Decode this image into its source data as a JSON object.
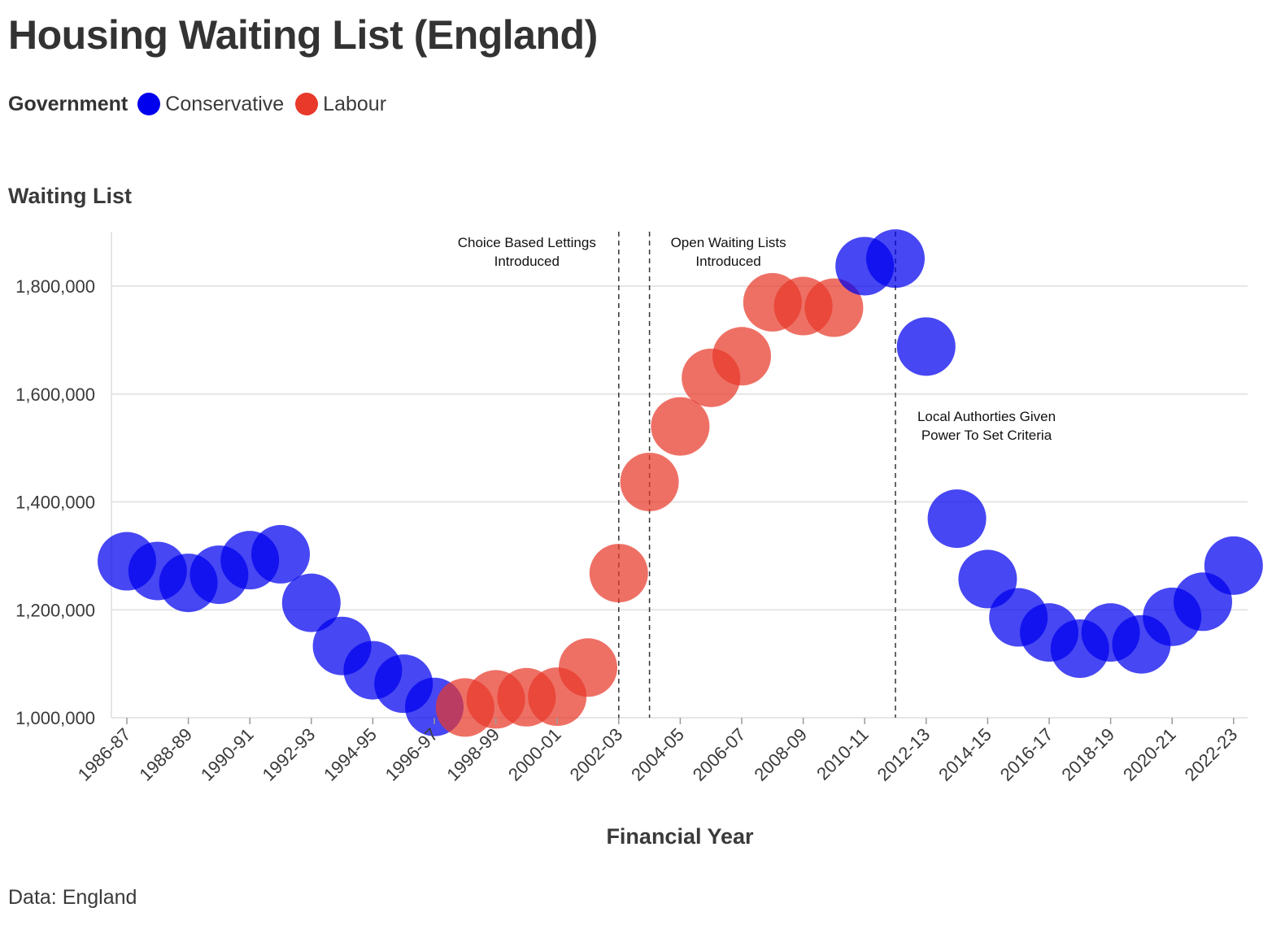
{
  "title": "Housing Waiting List (England)",
  "legend": {
    "title": "Government",
    "items": [
      {
        "label": "Conservative",
        "color": "#0000ee"
      },
      {
        "label": "Labour",
        "color": "#e8392a"
      }
    ]
  },
  "source": "Data: England",
  "chart_data": {
    "type": "scatter",
    "title": "Housing Waiting List (England)",
    "xlabel": "Financial Year",
    "ylabel": "Waiting List",
    "ylim": [
      980000,
      1900000
    ],
    "yticks": [
      1000000,
      1200000,
      1400000,
      1600000,
      1800000
    ],
    "ytick_labels": [
      "1,000,000",
      "1,200,000",
      "1,400,000",
      "1,600,000",
      "1,800,000"
    ],
    "xtick_labels": [
      "1986-87",
      "1988-89",
      "1990-91",
      "1992-93",
      "1994-95",
      "1996-97",
      "1998-99",
      "2000-01",
      "2002-03",
      "2004-05",
      "2006-07",
      "2008-09",
      "2010-11",
      "2012-13",
      "2014-15",
      "2016-17",
      "2018-19",
      "2020-21",
      "2022-23"
    ],
    "grid": true,
    "legend_position": "top-left",
    "points": [
      {
        "year": "1986-87",
        "value": 1290000,
        "government": "Conservative"
      },
      {
        "year": "1987-88",
        "value": 1272000,
        "government": "Conservative"
      },
      {
        "year": "1988-89",
        "value": 1250000,
        "government": "Conservative"
      },
      {
        "year": "1989-90",
        "value": 1265000,
        "government": "Conservative"
      },
      {
        "year": "1990-91",
        "value": 1292000,
        "government": "Conservative"
      },
      {
        "year": "1991-92",
        "value": 1303000,
        "government": "Conservative"
      },
      {
        "year": "1992-93",
        "value": 1213000,
        "government": "Conservative"
      },
      {
        "year": "1993-94",
        "value": 1133000,
        "government": "Conservative"
      },
      {
        "year": "1994-95",
        "value": 1088000,
        "government": "Conservative"
      },
      {
        "year": "1995-96",
        "value": 1063000,
        "government": "Conservative"
      },
      {
        "year": "1996-97",
        "value": 1020000,
        "government": "Conservative"
      },
      {
        "year": "1997-98",
        "value": 1019000,
        "government": "Labour"
      },
      {
        "year": "1998-99",
        "value": 1034000,
        "government": "Labour"
      },
      {
        "year": "1999-00",
        "value": 1038000,
        "government": "Labour"
      },
      {
        "year": "2000-01",
        "value": 1039000,
        "government": "Labour"
      },
      {
        "year": "2001-02",
        "value": 1093000,
        "government": "Labour"
      },
      {
        "year": "2002-03",
        "value": 1268000,
        "government": "Labour"
      },
      {
        "year": "2003-04",
        "value": 1437000,
        "government": "Labour"
      },
      {
        "year": "2004-05",
        "value": 1540000,
        "government": "Labour"
      },
      {
        "year": "2005-06",
        "value": 1630000,
        "government": "Labour"
      },
      {
        "year": "2006-07",
        "value": 1670000,
        "government": "Labour"
      },
      {
        "year": "2007-08",
        "value": 1770000,
        "government": "Labour"
      },
      {
        "year": "2008-09",
        "value": 1763000,
        "government": "Labour"
      },
      {
        "year": "2009-10",
        "value": 1760000,
        "government": "Labour"
      },
      {
        "year": "2010-11",
        "value": 1837000,
        "government": "Conservative"
      },
      {
        "year": "2011-12",
        "value": 1851000,
        "government": "Conservative"
      },
      {
        "year": "2012-13",
        "value": 1688000,
        "government": "Conservative"
      },
      {
        "year": "2013-14",
        "value": 1369000,
        "government": "Conservative"
      },
      {
        "year": "2014-15",
        "value": 1257000,
        "government": "Conservative"
      },
      {
        "year": "2015-16",
        "value": 1186000,
        "government": "Conservative"
      },
      {
        "year": "2016-17",
        "value": 1158000,
        "government": "Conservative"
      },
      {
        "year": "2017-18",
        "value": 1128000,
        "government": "Conservative"
      },
      {
        "year": "2018-19",
        "value": 1158000,
        "government": "Conservative"
      },
      {
        "year": "2019-20",
        "value": 1136000,
        "government": "Conservative"
      },
      {
        "year": "2020-21",
        "value": 1187000,
        "government": "Conservative"
      },
      {
        "year": "2021-22",
        "value": 1215000,
        "government": "Conservative"
      },
      {
        "year": "2022-23",
        "value": 1282000,
        "government": "Conservative"
      }
    ],
    "annotations": [
      {
        "year": "2002-03",
        "lines": [
          "Choice Based Lettings",
          "Introduced"
        ],
        "side": "left"
      },
      {
        "year": "2003-04",
        "lines": [
          "Open Waiting Lists",
          "Introduced"
        ],
        "side": "right"
      },
      {
        "year": "2011-12",
        "lines": [
          "Local Authorties Given",
          "Power To Set Criteria"
        ],
        "side": "right"
      }
    ]
  }
}
